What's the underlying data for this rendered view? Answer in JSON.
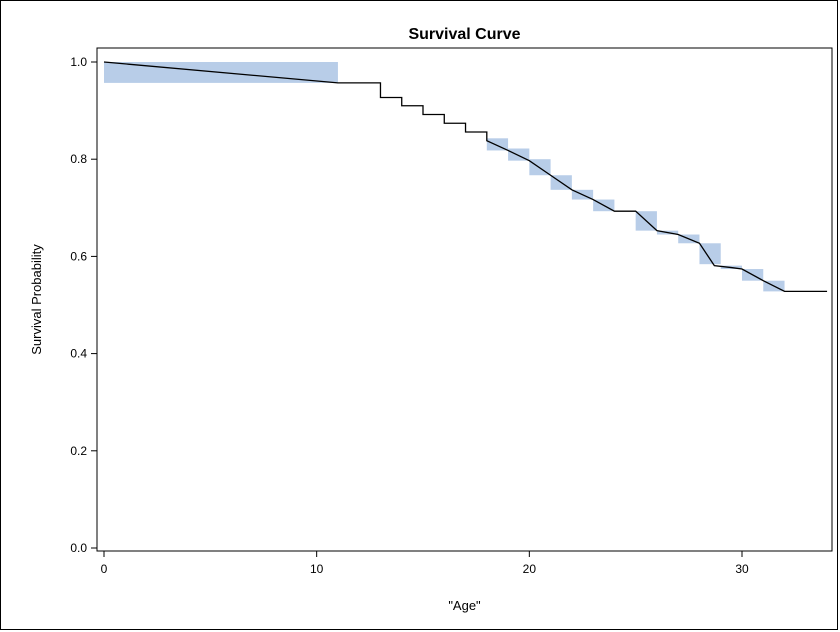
{
  "chart_data": {
    "type": "line",
    "title": "Survival Curve",
    "xlabel": "\"Age\"",
    "ylabel": "Survival Probability",
    "xlim": [
      0,
      34
    ],
    "ylim": [
      0,
      1.0
    ],
    "x_ticks": [
      0,
      10,
      20,
      30
    ],
    "y_ticks": [
      0.0,
      0.2,
      0.4,
      0.6,
      0.8,
      1.0
    ],
    "x_tick_labels": [
      "0",
      "10",
      "20",
      "30"
    ],
    "y_tick_labels": [
      "0.0",
      "0.2",
      "0.4",
      "0.6",
      "0.8",
      "1.0"
    ],
    "grid": false,
    "colors": {
      "line": "#000000",
      "band": "#b8cde8"
    },
    "curve": [
      [
        0,
        1.0
      ],
      [
        11,
        0.957
      ],
      [
        13,
        0.957
      ],
      [
        13,
        0.927
      ],
      [
        14,
        0.927
      ],
      [
        14,
        0.91
      ],
      [
        15,
        0.91
      ],
      [
        15,
        0.892
      ],
      [
        16,
        0.892
      ],
      [
        16,
        0.874
      ],
      [
        17,
        0.874
      ],
      [
        17,
        0.856
      ],
      [
        18,
        0.856
      ],
      [
        18,
        0.838
      ],
      [
        19,
        0.818
      ],
      [
        20,
        0.797
      ],
      [
        21,
        0.767
      ],
      [
        22,
        0.737
      ],
      [
        23,
        0.717
      ],
      [
        24,
        0.693
      ],
      [
        25,
        0.693
      ],
      [
        26,
        0.653
      ],
      [
        27,
        0.645
      ],
      [
        28,
        0.627
      ],
      [
        28.7,
        0.581
      ],
      [
        29.5,
        0.577
      ],
      [
        30,
        0.574
      ],
      [
        31,
        0.55
      ],
      [
        32,
        0.528
      ],
      [
        34,
        0.528
      ]
    ],
    "bands": [
      {
        "x0": 0,
        "x1": 11,
        "y0": 0.957,
        "y1": 1.0
      },
      {
        "x0": 18,
        "x1": 19,
        "y0": 0.818,
        "y1": 0.843
      },
      {
        "x0": 19,
        "x1": 20,
        "y0": 0.797,
        "y1": 0.822
      },
      {
        "x0": 20,
        "x1": 21,
        "y0": 0.767,
        "y1": 0.8
      },
      {
        "x0": 21,
        "x1": 22,
        "y0": 0.737,
        "y1": 0.767
      },
      {
        "x0": 22,
        "x1": 23,
        "y0": 0.717,
        "y1": 0.737
      },
      {
        "x0": 23,
        "x1": 24,
        "y0": 0.693,
        "y1": 0.717
      },
      {
        "x0": 25,
        "x1": 26,
        "y0": 0.653,
        "y1": 0.693
      },
      {
        "x0": 26,
        "x1": 27,
        "y0": 0.645,
        "y1": 0.653
      },
      {
        "x0": 27,
        "x1": 28,
        "y0": 0.627,
        "y1": 0.645
      },
      {
        "x0": 28,
        "x1": 29,
        "y0": 0.584,
        "y1": 0.627
      },
      {
        "x0": 29,
        "x1": 30,
        "y0": 0.574,
        "y1": 0.581
      },
      {
        "x0": 30,
        "x1": 31,
        "y0": 0.55,
        "y1": 0.574
      },
      {
        "x0": 31,
        "x1": 32,
        "y0": 0.528,
        "y1": 0.55
      }
    ]
  }
}
